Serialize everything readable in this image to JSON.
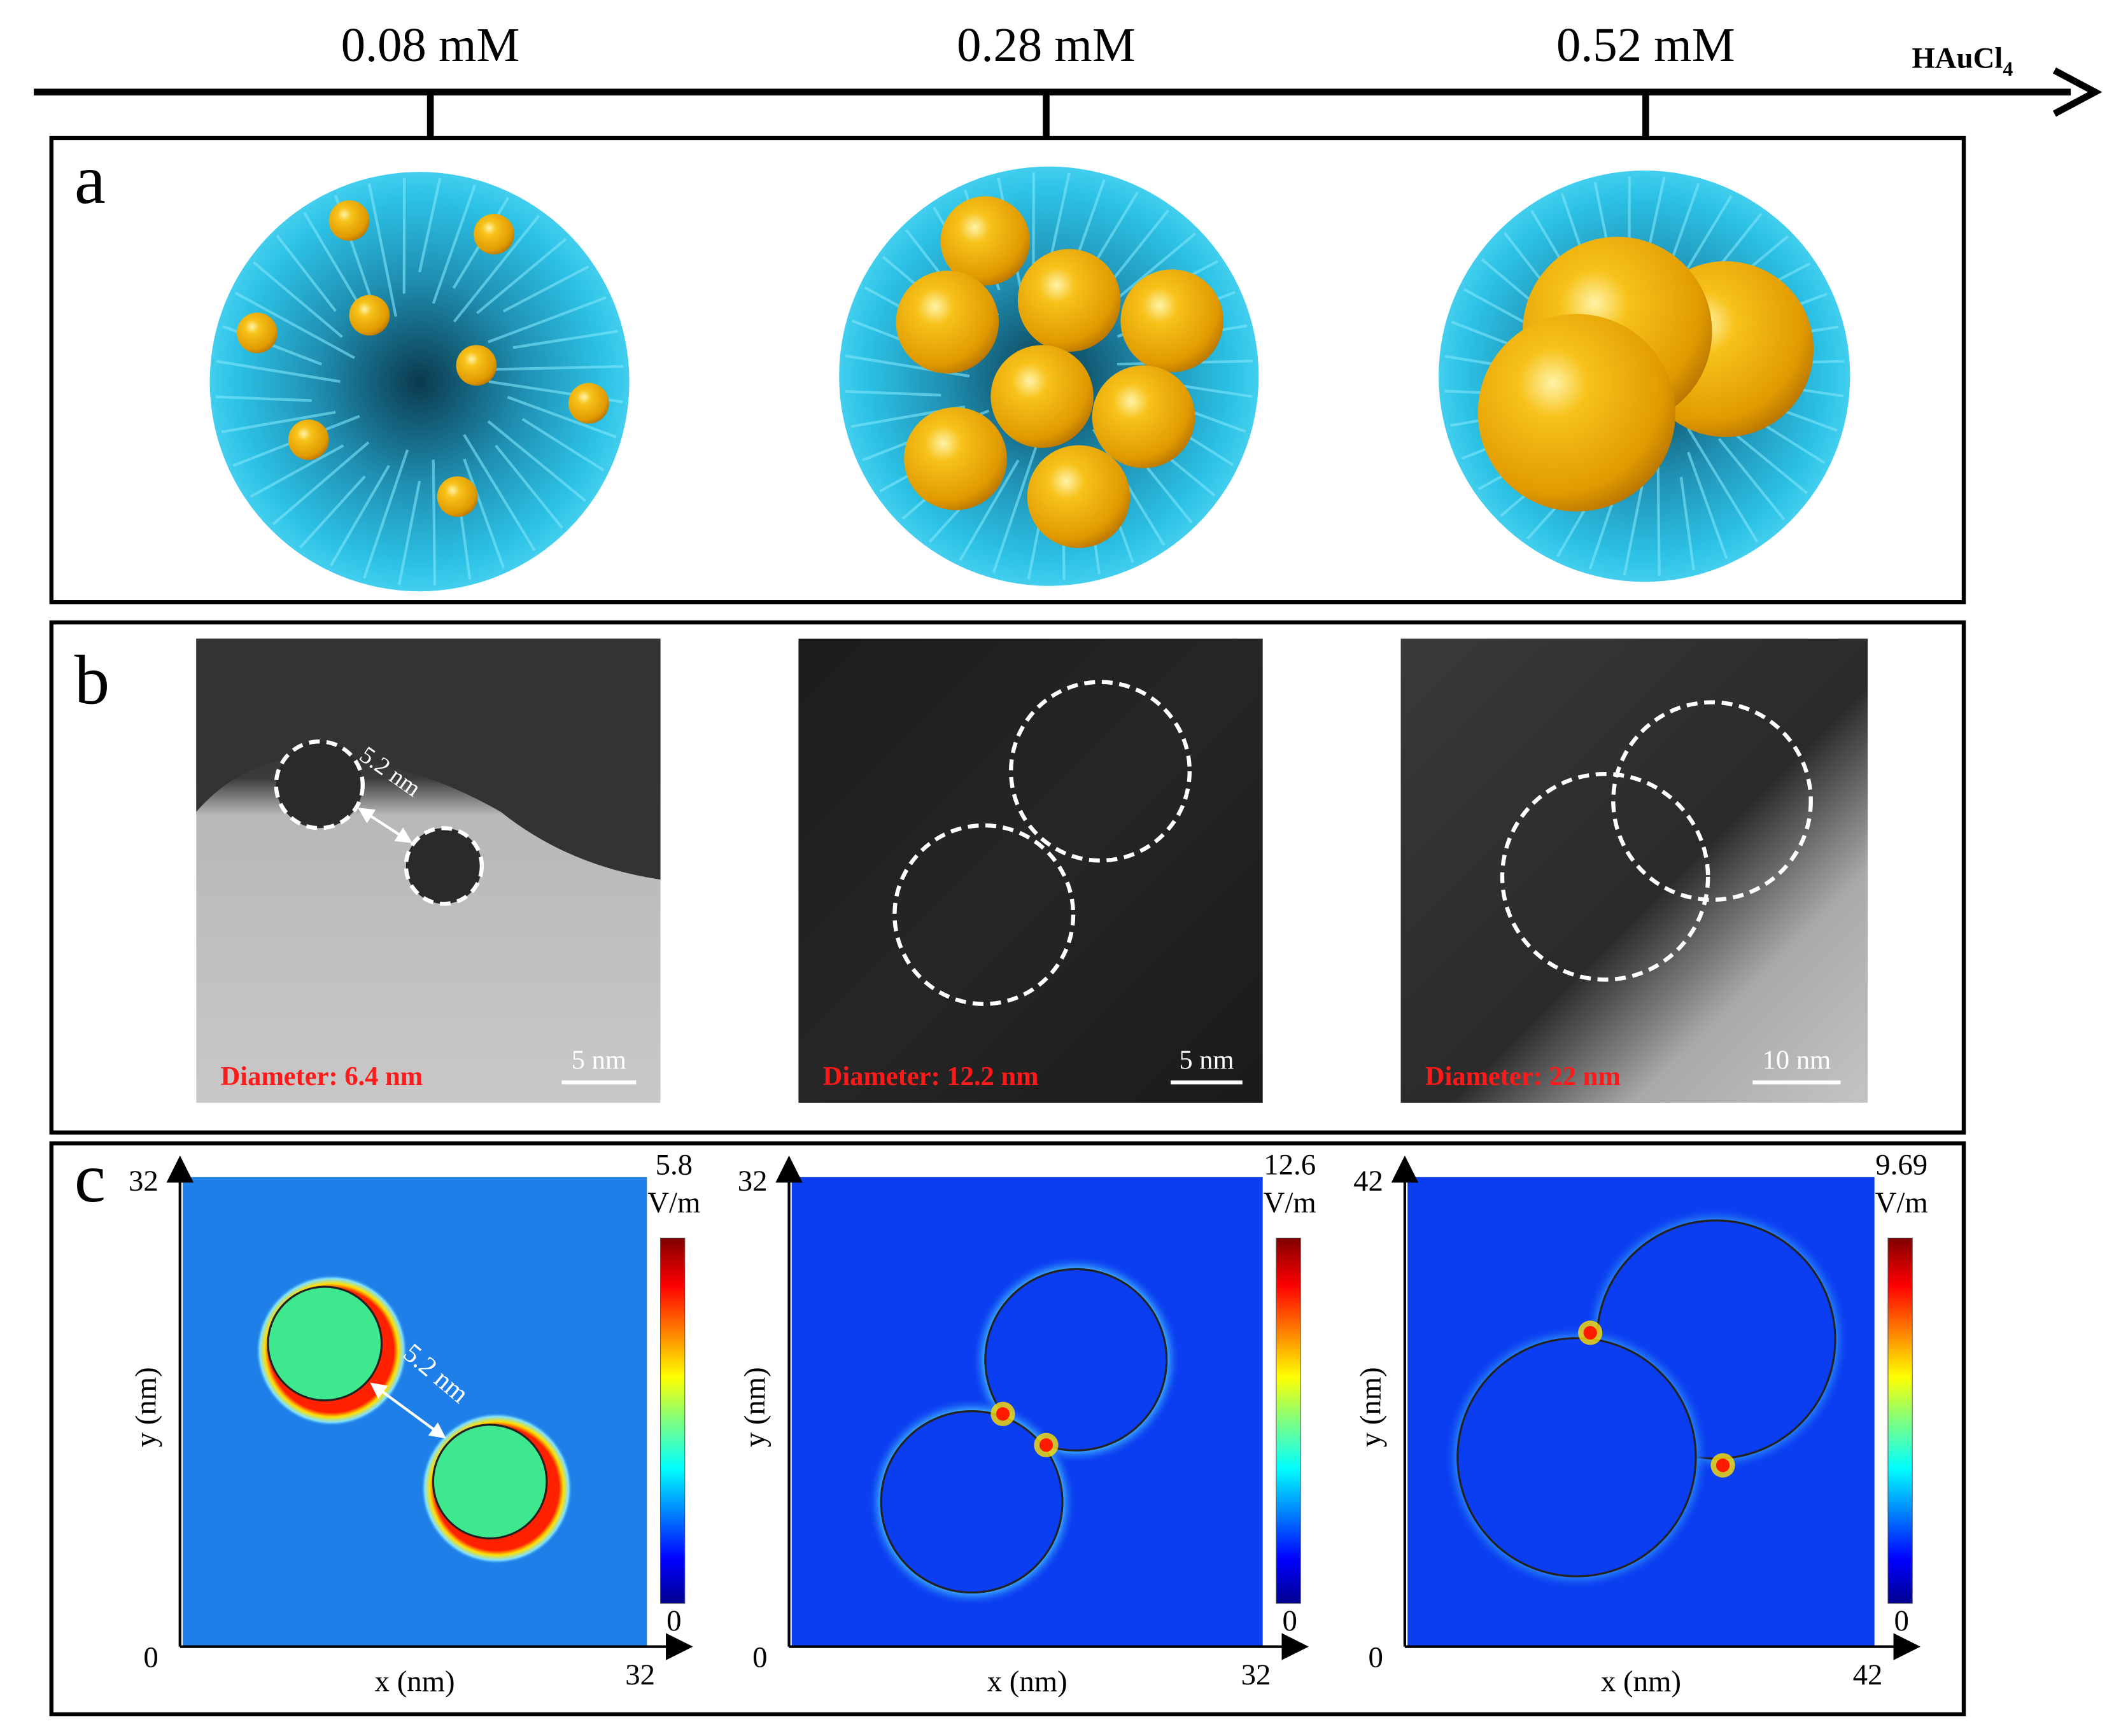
{
  "timeline": {
    "concentrations": [
      "0.08 mM",
      "0.28 mM",
      "0.52 mM"
    ],
    "label": {
      "base": "HAuCl",
      "subscript": "4"
    }
  },
  "panel_a": {
    "label": "a"
  },
  "panel_b": {
    "label": "b",
    "images": [
      {
        "diameter": "Diameter: 6.4 nm",
        "scale": "5 nm",
        "gap": "5.2 nm"
      },
      {
        "diameter": "Diameter: 12.2 nm",
        "scale": "5 nm"
      },
      {
        "diameter": "Diameter: 22 nm",
        "scale": "10 nm"
      }
    ]
  },
  "panel_c": {
    "label": "c",
    "maps": [
      {
        "xmax": 32,
        "ymax": 32,
        "origin": 0,
        "cbar_max": 5.8,
        "cbar_min": 0,
        "unit": "V/m",
        "xlabel": "x (nm)",
        "ylabel": "y (nm)",
        "gap": "5.2 nm"
      },
      {
        "xmax": 32,
        "ymax": 32,
        "origin": 0,
        "cbar_max": 12.6,
        "cbar_min": 0,
        "unit": "V/m",
        "xlabel": "x (nm)",
        "ylabel": "y (nm)"
      },
      {
        "xmax": 42,
        "ymax": 42,
        "origin": 0,
        "cbar_max": 9.69,
        "cbar_min": 0,
        "unit": "V/m",
        "xlabel": "x (nm)",
        "ylabel": "y (nm)"
      }
    ]
  }
}
